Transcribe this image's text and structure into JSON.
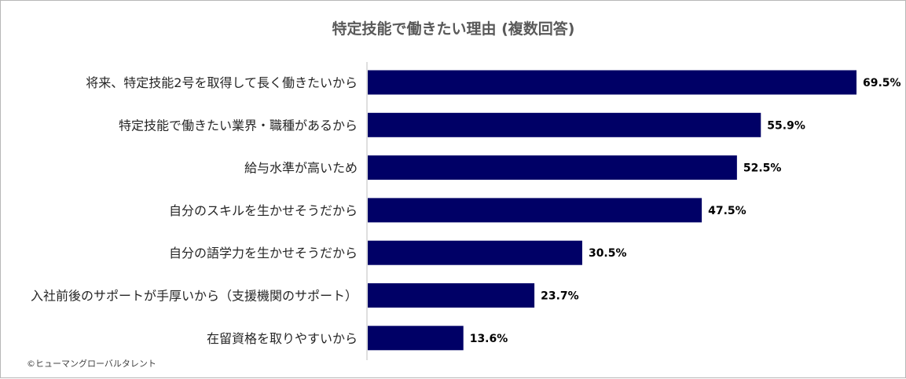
{
  "credit": "©ヒューマングローバルタレント",
  "chart_data": {
    "type": "bar",
    "orientation": "horizontal",
    "title": "特定技能で働きたい理由 (複数回答)",
    "xlabel": "",
    "ylabel": "",
    "xlim": [
      0,
      69.5
    ],
    "grid": false,
    "legend": "none",
    "value_format": "percent_1dp",
    "bar_color": "#000066",
    "categories": [
      "将来、特定技能2号を取得して長く働きたいから",
      "特定技能で働きたい業界・職種があるから",
      "給与水準が高いため",
      "自分のスキルを生かせそうだから",
      "自分の語学力を生かせそうだから",
      "入社前後のサポートが手厚いから（支援機関のサポート）",
      "在留資格を取りやすいから"
    ],
    "values": [
      69.5,
      55.9,
      52.5,
      47.5,
      30.5,
      23.7,
      13.6
    ],
    "value_labels": [
      "69.5%",
      "55.9%",
      "52.5%",
      "47.5%",
      "30.5%",
      "23.7%",
      "13.6%"
    ]
  }
}
